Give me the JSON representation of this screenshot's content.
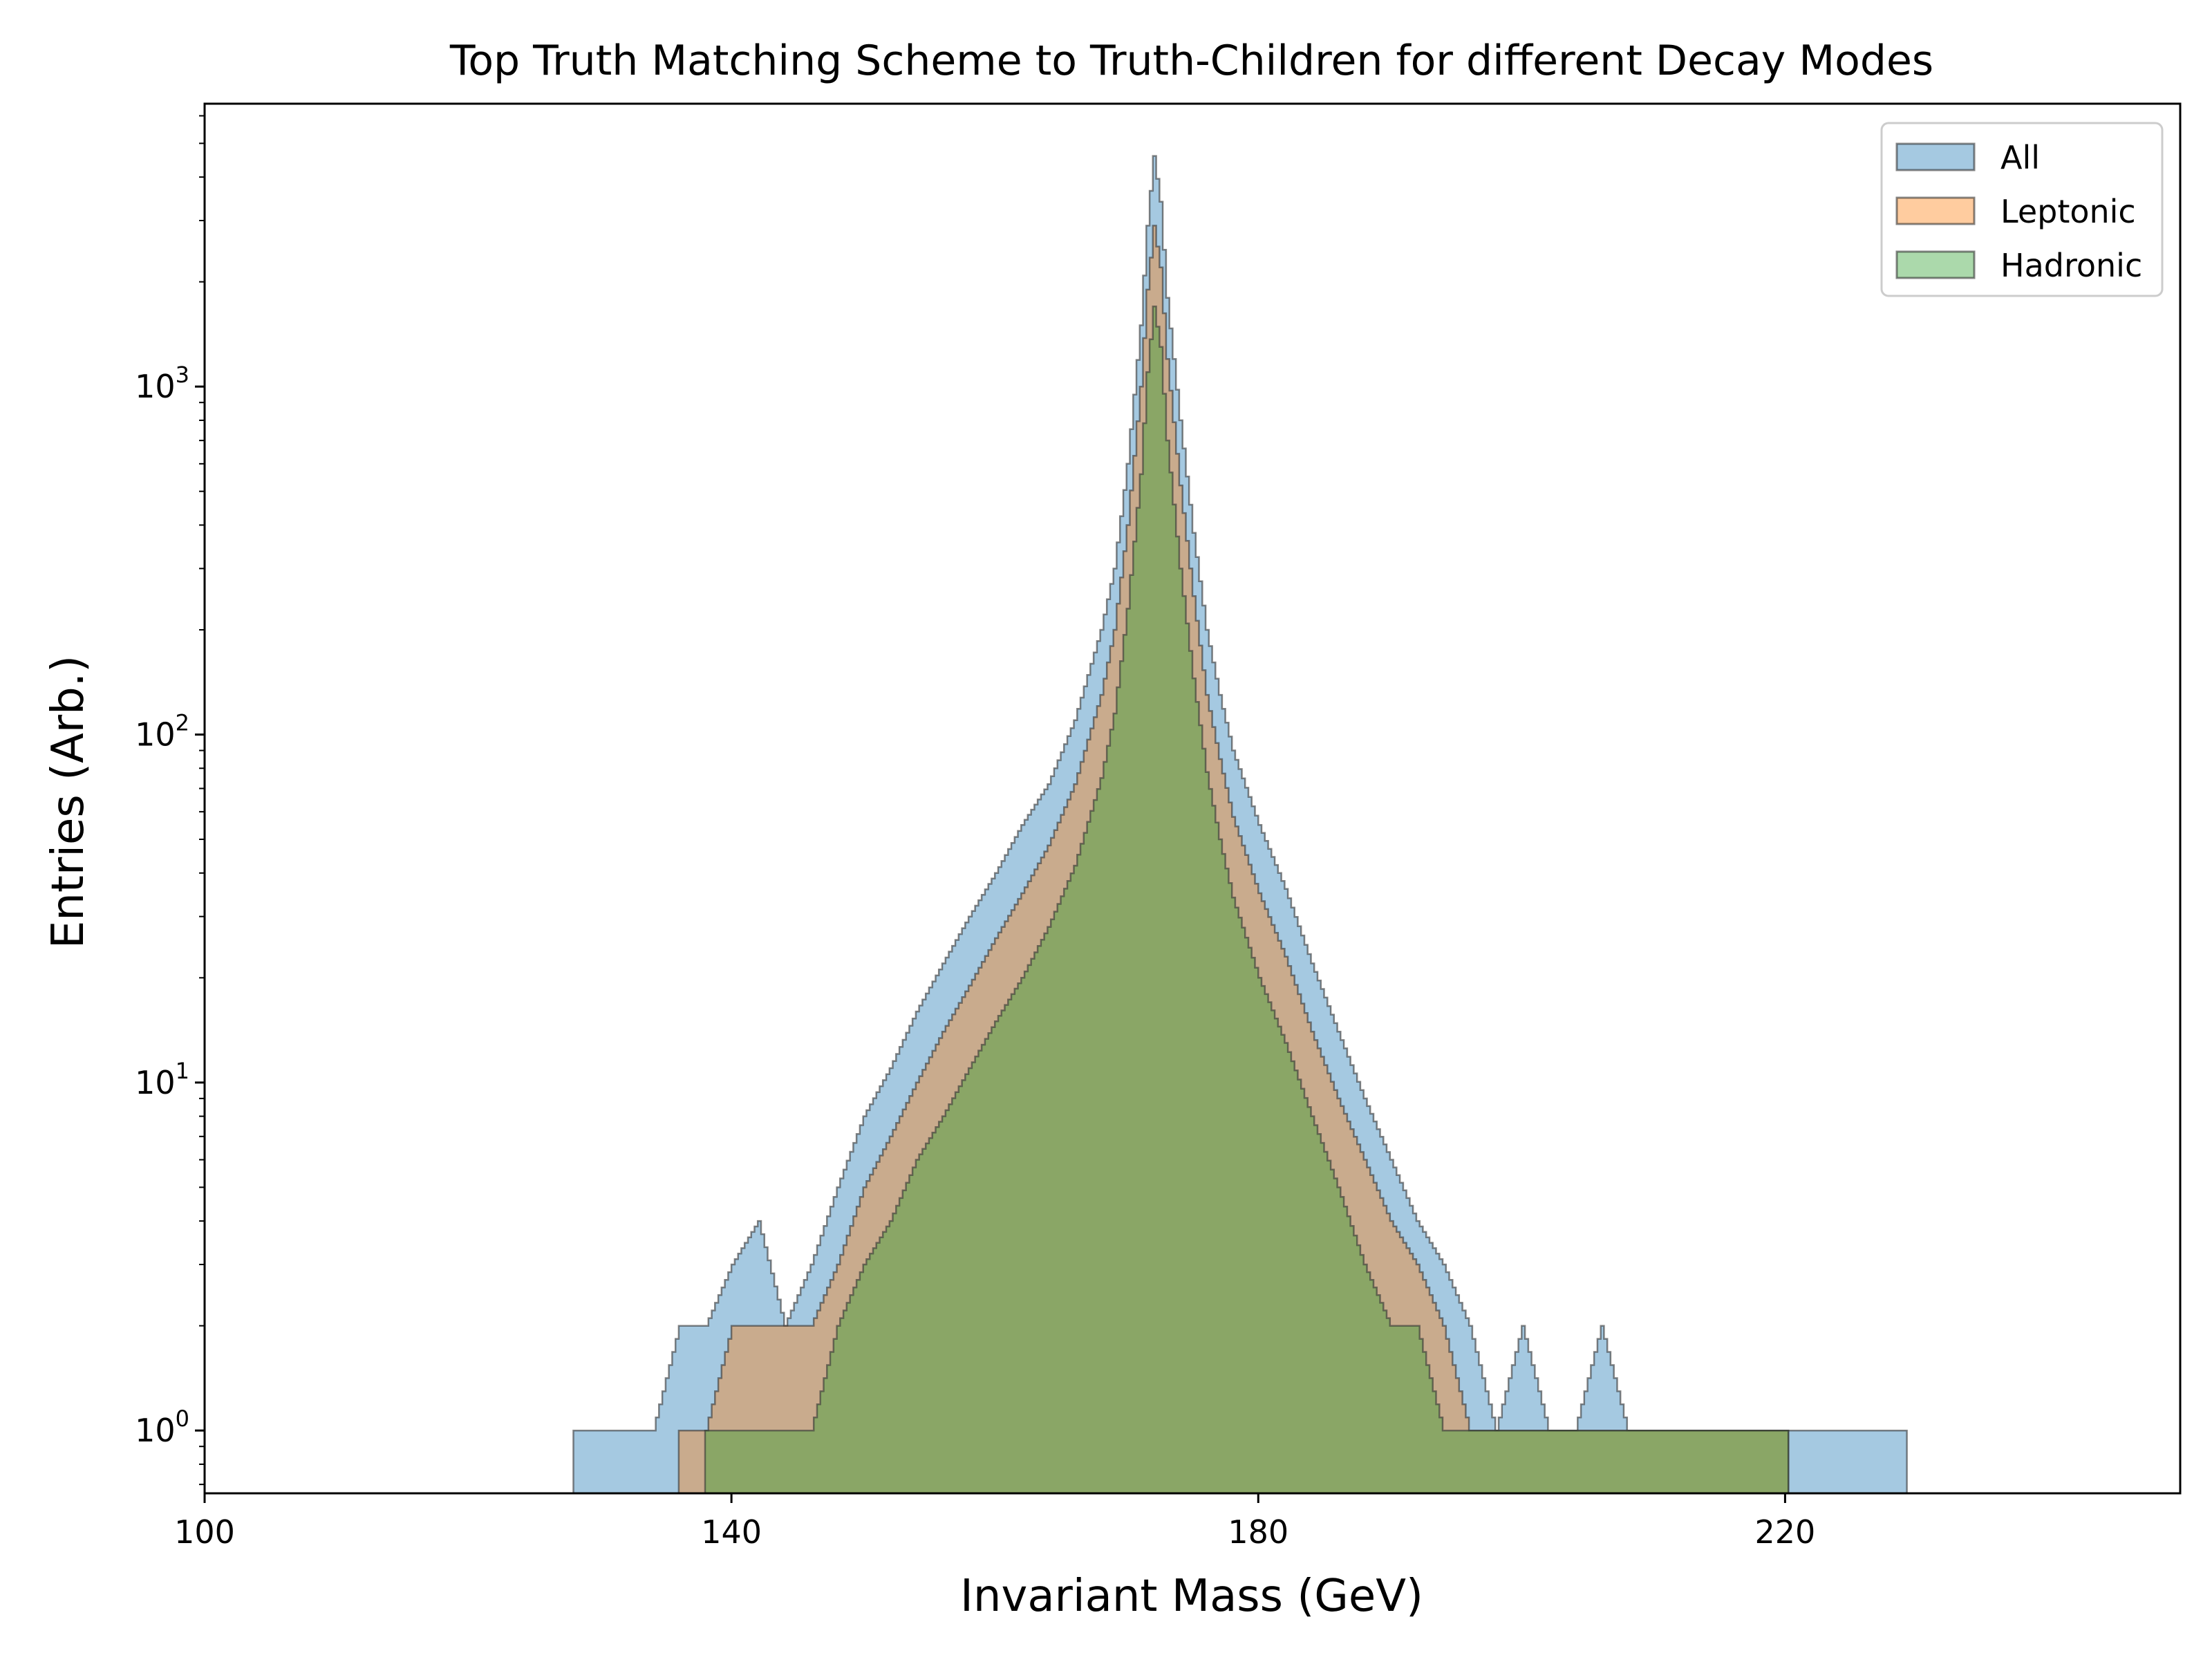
{
  "chart_data": {
    "type": "histogram",
    "title": "Top Truth Matching Scheme to Truth-Children for different Decay Modes",
    "xlabel": "Invariant Mass (GeV)",
    "ylabel": "Entries (Arb.)",
    "xlim": [
      100,
      250
    ],
    "ylim": [
      0.66,
      6500
    ],
    "yscale": "log",
    "x_ticks": [
      100,
      140,
      180,
      220
    ],
    "x_tick_labels": [
      "100",
      "140",
      "180",
      "220"
    ],
    "y_ticks": [
      1,
      10,
      100,
      1000
    ],
    "y_tick_bases": [
      "10",
      "10",
      "10",
      "10"
    ],
    "y_tick_exponents": [
      "0",
      "1",
      "2",
      "3"
    ],
    "legend_position": "top-right",
    "grid": false,
    "series": [
      {
        "name": "All",
        "color": "#1f77b4",
        "fill_opacity": 0.4,
        "points": [
          [
            128,
            1
          ],
          [
            134,
            1
          ],
          [
            136,
            2
          ],
          [
            138,
            2
          ],
          [
            140,
            3
          ],
          [
            142,
            4
          ],
          [
            144,
            2
          ],
          [
            146,
            3
          ],
          [
            148,
            5
          ],
          [
            150,
            8
          ],
          [
            152,
            11
          ],
          [
            154,
            16
          ],
          [
            156,
            22
          ],
          [
            158,
            30
          ],
          [
            160,
            40
          ],
          [
            162,
            55
          ],
          [
            164,
            72
          ],
          [
            166,
            110
          ],
          [
            168,
            200
          ],
          [
            169,
            300
          ],
          [
            170,
            600
          ],
          [
            171,
            1500
          ],
          [
            171.5,
            2900
          ],
          [
            172,
            4600
          ],
          [
            172.5,
            3400
          ],
          [
            173,
            1800
          ],
          [
            174,
            800
          ],
          [
            175,
            380
          ],
          [
            176,
            200
          ],
          [
            177,
            130
          ],
          [
            178,
            90
          ],
          [
            180,
            55
          ],
          [
            182,
            36
          ],
          [
            184,
            22
          ],
          [
            186,
            14
          ],
          [
            188,
            9
          ],
          [
            190,
            6
          ],
          [
            192,
            4
          ],
          [
            194,
            3
          ],
          [
            196,
            2
          ],
          [
            198,
            1
          ],
          [
            200,
            2
          ],
          [
            202,
            1
          ],
          [
            204,
            1
          ],
          [
            206,
            2
          ],
          [
            208,
            1
          ],
          [
            210,
            1
          ],
          [
            212,
            1
          ],
          [
            214,
            1
          ],
          [
            216,
            1
          ],
          [
            218,
            1
          ],
          [
            220,
            1
          ],
          [
            222,
            1
          ],
          [
            229,
            1
          ]
        ]
      },
      {
        "name": "Leptonic",
        "color": "#ff7f0e",
        "fill_opacity": 0.4,
        "points": [
          [
            136,
            1
          ],
          [
            138,
            1
          ],
          [
            140,
            2
          ],
          [
            142,
            2
          ],
          [
            144,
            2
          ],
          [
            146,
            2
          ],
          [
            148,
            3
          ],
          [
            150,
            5
          ],
          [
            152,
            7
          ],
          [
            154,
            10
          ],
          [
            156,
            14
          ],
          [
            158,
            19
          ],
          [
            160,
            26
          ],
          [
            162,
            35
          ],
          [
            164,
            48
          ],
          [
            166,
            72
          ],
          [
            168,
            130
          ],
          [
            169,
            200
          ],
          [
            170,
            400
          ],
          [
            171,
            1000
          ],
          [
            171.5,
            1900
          ],
          [
            172,
            2900
          ],
          [
            172.5,
            2200
          ],
          [
            173,
            1200
          ],
          [
            174,
            520
          ],
          [
            175,
            250
          ],
          [
            176,
            130
          ],
          [
            177,
            85
          ],
          [
            178,
            58
          ],
          [
            180,
            35
          ],
          [
            182,
            23
          ],
          [
            184,
            14
          ],
          [
            186,
            9
          ],
          [
            188,
            6
          ],
          [
            190,
            4
          ],
          [
            192,
            3
          ],
          [
            194,
            2
          ],
          [
            196,
            1
          ],
          [
            198,
            1
          ],
          [
            200,
            1
          ],
          [
            203,
            1
          ],
          [
            206,
            1
          ],
          [
            209,
            1
          ],
          [
            212,
            1
          ],
          [
            216,
            1
          ],
          [
            220,
            1
          ]
        ]
      },
      {
        "name": "Hadronic",
        "color": "#2ca02c",
        "fill_opacity": 0.4,
        "points": [
          [
            138,
            1
          ],
          [
            142,
            1
          ],
          [
            144,
            1
          ],
          [
            146,
            1
          ],
          [
            148,
            2
          ],
          [
            150,
            3
          ],
          [
            152,
            4
          ],
          [
            154,
            6
          ],
          [
            156,
            8
          ],
          [
            158,
            11
          ],
          [
            160,
            15
          ],
          [
            162,
            20
          ],
          [
            164,
            28
          ],
          [
            166,
            42
          ],
          [
            168,
            75
          ],
          [
            169,
            115
          ],
          [
            170,
            230
          ],
          [
            171,
            560
          ],
          [
            171.5,
            1100
          ],
          [
            172,
            1700
          ],
          [
            172.5,
            1300
          ],
          [
            173,
            700
          ],
          [
            174,
            300
          ],
          [
            175,
            145
          ],
          [
            176,
            78
          ],
          [
            177,
            50
          ],
          [
            178,
            34
          ],
          [
            180,
            20
          ],
          [
            182,
            13
          ],
          [
            184,
            8
          ],
          [
            186,
            5
          ],
          [
            188,
            3
          ],
          [
            190,
            2
          ],
          [
            192,
            2
          ],
          [
            194,
            1
          ],
          [
            196,
            1
          ],
          [
            199,
            1
          ],
          [
            202,
            1
          ],
          [
            205,
            1
          ],
          [
            210,
            1
          ],
          [
            215,
            1
          ],
          [
            220,
            1
          ]
        ]
      }
    ]
  }
}
